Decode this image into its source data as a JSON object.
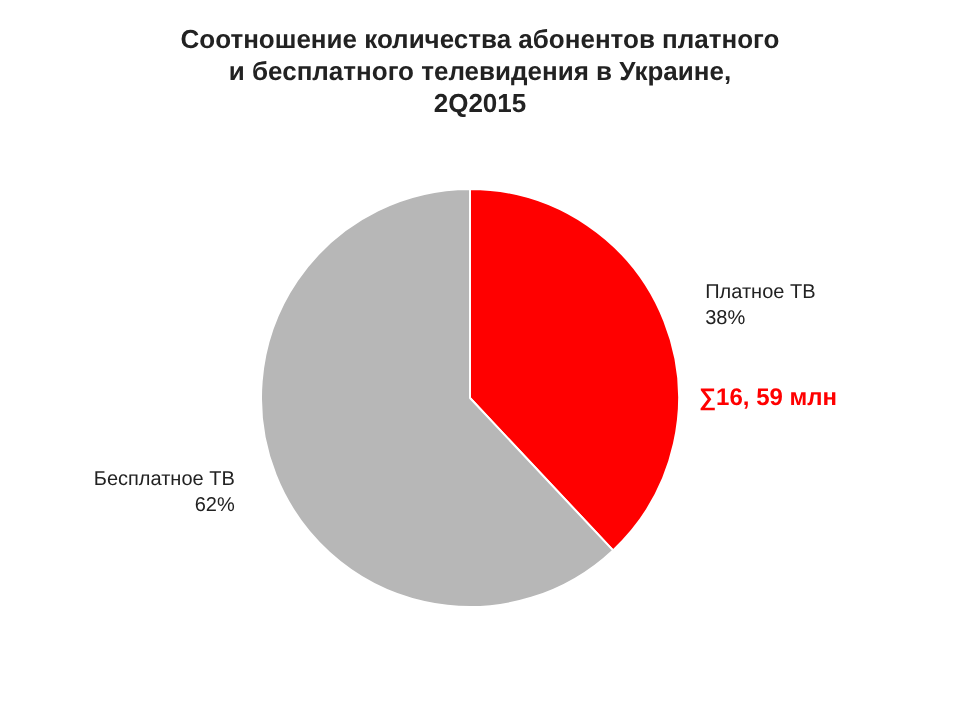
{
  "chart_data": {
    "type": "pie",
    "title": "Соотношение количества абонентов платного и бесплатного телевидения в Украине, 2Q2015",
    "categories": [
      "Платное ТВ",
      "Бесплатное ТВ"
    ],
    "values": [
      38,
      62
    ],
    "colors": [
      "#ff0000",
      "#b7b7b7"
    ],
    "value_labels": [
      "38%",
      "62%"
    ],
    "annotations": [
      "∑16, 59 млн"
    ],
    "legend": false
  }
}
